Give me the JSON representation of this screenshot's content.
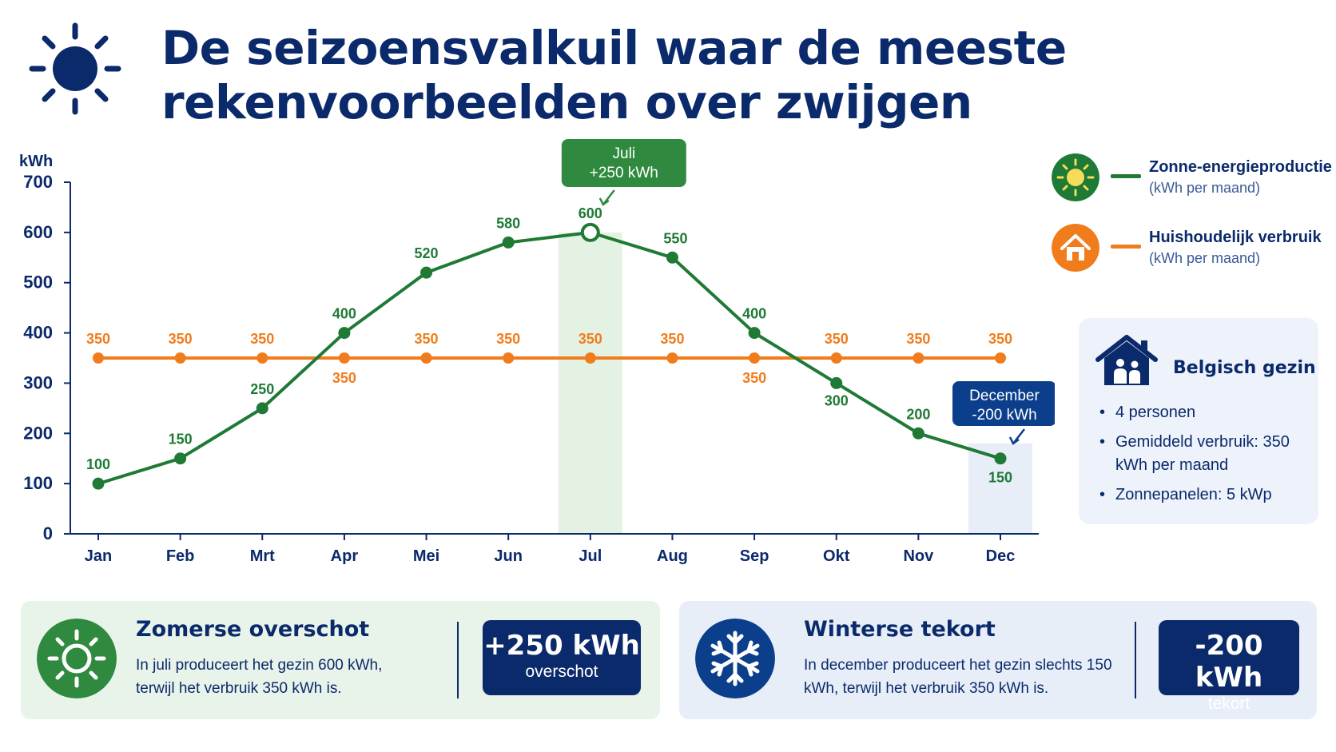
{
  "header": {
    "title_line1": "De seizoensvalkuil waar de meeste",
    "title_line2": "rekenvoorbeelden over zwijgen"
  },
  "chart_data": {
    "type": "line",
    "ylabel": "kWh",
    "categories": [
      "Jan",
      "Feb",
      "Mrt",
      "Apr",
      "Mei",
      "Jun",
      "Jul",
      "Aug",
      "Sep",
      "Okt",
      "Nov",
      "Dec"
    ],
    "ylim": [
      0,
      700
    ],
    "yticks": [
      0,
      100,
      200,
      300,
      400,
      500,
      600,
      700
    ],
    "series": [
      {
        "name": "Zonne-energieproductie",
        "color": "#1e7a35",
        "values": [
          100,
          150,
          250,
          400,
          520,
          580,
          600,
          550,
          400,
          300,
          200,
          150
        ]
      },
      {
        "name": "Huishoudelijk verbruik",
        "color": "#f07c1c",
        "values": [
          350,
          350,
          350,
          350,
          350,
          350,
          350,
          350,
          350,
          350,
          350,
          350
        ]
      }
    ],
    "highlights": [
      {
        "month": "Jul",
        "label_line1": "Juli",
        "label_line2": "+250 kWh",
        "color": "#2f8a3f"
      },
      {
        "month": "Dec",
        "label_line1": "December",
        "label_line2": "-200 kWh",
        "color": "#0b3f8c"
      }
    ],
    "legend_position": "right",
    "grid": false
  },
  "legend": {
    "items": [
      {
        "name": "Zonne-energieproductie",
        "sub": "(kWh per maand)",
        "color": "#1e7a35",
        "icon": "sun-icon"
      },
      {
        "name": "Huishoudelijk verbruik",
        "sub": "(kWh per maand)",
        "color": "#f07c1c",
        "icon": "house-icon"
      }
    ]
  },
  "family": {
    "title": "Belgisch gezin",
    "icon": "family-house-icon",
    "items": [
      "4 personen",
      "Gemiddeld verbruik: 350 kWh per maand",
      "Zonnepanelen: 5 kWp"
    ]
  },
  "surplus": {
    "title": "Zomerse overschot",
    "text": "In juli produceert het gezin 600 kWh, terwijl het verbruik 350 kWh is.",
    "value": "+250 kWh",
    "label": "overschot",
    "icon": "sun-icon",
    "color": "#2f8a3f"
  },
  "deficit": {
    "title": "Winterse tekort",
    "text": "In december produceert het gezin slechts 150 kWh, terwijl het verbruik 350 kWh is.",
    "value": "-200 kWh",
    "label": "tekort",
    "icon": "snowflake-icon",
    "color": "#0b3f8c"
  }
}
